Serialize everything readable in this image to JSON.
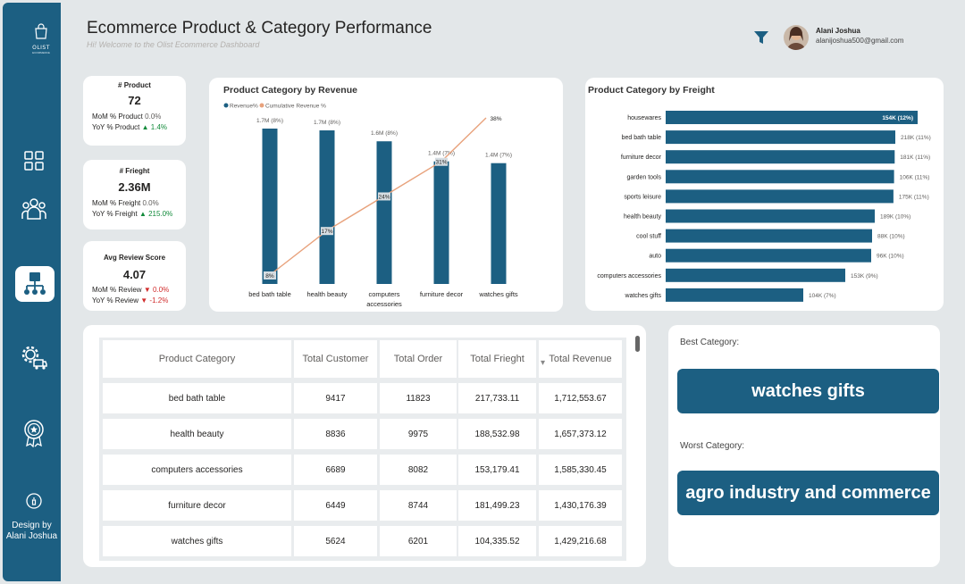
{
  "header": {
    "title": "Ecommerce Product & Category Performance",
    "subtitle": "Hi!  Welcome to the Olist Ecommerce Dashboard",
    "user_name": "Alani Joshua",
    "user_email": "alanijoshua500@gmail.com"
  },
  "sidebar": {
    "logo_text": "OLIST",
    "logo_sub": "ECOMMERCE",
    "items": [
      {
        "icon": "dashboard-grid-icon"
      },
      {
        "icon": "customers-icon"
      },
      {
        "icon": "product-category-icon",
        "active": true
      },
      {
        "icon": "logistics-gear-icon"
      },
      {
        "icon": "review-award-icon"
      }
    ],
    "design_by": "Design by Alani Joshua"
  },
  "kpis": {
    "product": {
      "title": "# Product",
      "value": "72",
      "mom_label": "MoM % Product",
      "mom": "0.0%",
      "yoy_label": "YoY % Product",
      "yoy": "1.4%"
    },
    "freight": {
      "title": "# Frieght",
      "value": "2.36M",
      "mom_label": "MoM % Freight",
      "mom": "0.0%",
      "yoy_label": "YoY % Freight",
      "yoy": "215.0%"
    },
    "review": {
      "title": "Avg Review Score",
      "value": "4.07",
      "mom_label": "MoM % Review",
      "mom": "0.0%",
      "yoy_label": "YoY % Review",
      "yoy": "-1.2%"
    }
  },
  "chart_data": [
    {
      "type": "bar",
      "title": "Product Category by Revenue",
      "legend": [
        "Revenue%",
        "Cumulative Revenue %"
      ],
      "legend_position": "top-left",
      "categories": [
        "bed bath table",
        "health beauty",
        "computers accessories",
        "furniture decor",
        "watches gifts"
      ],
      "series": [
        {
          "name": "Revenue%",
          "values": [
            1.7,
            1.7,
            1.6,
            1.4,
            1.4
          ],
          "labels": [
            "1.7M (8%)",
            "1.7M (8%)",
            "1.6M (8%)",
            "1.4M (7%)",
            "1.4M (7%)"
          ]
        },
        {
          "name": "Cumulative Revenue %",
          "type": "line",
          "values": [
            8,
            17,
            24,
            31,
            38
          ],
          "labels": [
            "8%",
            "17%",
            "24%",
            "31%",
            "38%"
          ]
        }
      ],
      "colors": {
        "bar": "#1c5f82",
        "line": "#e8a27c"
      }
    },
    {
      "type": "bar",
      "orientation": "horizontal",
      "title": "Product Category by Freight",
      "categories": [
        "housewares",
        "bed bath table",
        "furniture decor",
        "garden tools",
        "sports leisure",
        "health beauty",
        "cool stuff",
        "auto",
        "computers accessories",
        "watches gifts"
      ],
      "values": [
        154,
        218,
        181,
        106,
        175,
        189,
        88,
        96,
        153,
        104
      ],
      "bar_lengths_pct": [
        12,
        11,
        11,
        11,
        11,
        10,
        10,
        10,
        9,
        7
      ],
      "labels": [
        "154K (12%)",
        "218K (11%)",
        "181K (11%)",
        "106K (11%)",
        "175K (11%)",
        "189K (10%)",
        "88K (10%)",
        "96K (10%)",
        "153K (9%)",
        "104K (7%)"
      ],
      "colors": {
        "bar": "#1c5f82"
      }
    }
  ],
  "table": {
    "headers": [
      "Product Category",
      "Total Customer",
      "Total Order",
      "Total Frieght",
      "Total Revenue"
    ],
    "rows": [
      [
        "bed bath table",
        "9417",
        "11823",
        "217,733.11",
        "1,712,553.67"
      ],
      [
        "health beauty",
        "8836",
        "9975",
        "188,532.98",
        "1,657,373.12"
      ],
      [
        "computers accessories",
        "6689",
        "8082",
        "153,179.41",
        "1,585,330.45"
      ],
      [
        "furniture decor",
        "6449",
        "8744",
        "181,499.23",
        "1,430,176.39"
      ],
      [
        "watches gifts",
        "5624",
        "6201",
        "104,335.52",
        "1,429,216.68"
      ]
    ]
  },
  "categories": {
    "best_label": "Best Category:",
    "best": "watches gifts",
    "worst_label": "Worst Category:",
    "worst": "agro industry and commerce"
  },
  "colors": {
    "primary": "#1c5f82",
    "accent_line": "#e8a27c",
    "up": "#118a3a",
    "down": "#d12c2c"
  }
}
